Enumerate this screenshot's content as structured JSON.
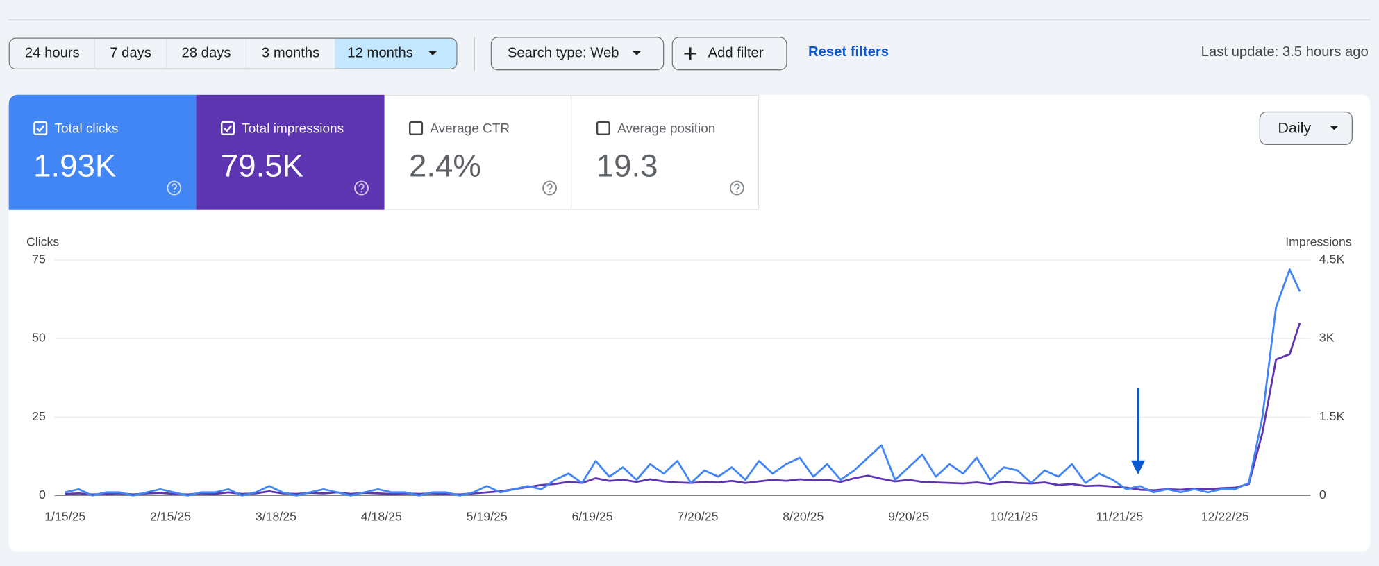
{
  "toolbar": {
    "ranges": [
      "24 hours",
      "7 days",
      "28 days",
      "3 months",
      "12 months"
    ],
    "search_type": "Search type: Web",
    "add_filter": "Add filter",
    "reset": "Reset filters",
    "last_update": "Last update: 3.5 hours ago"
  },
  "metrics": [
    {
      "label": "Total clicks",
      "value": "1.93K"
    },
    {
      "label": "Total impressions",
      "value": "79.5K"
    },
    {
      "label": "Average CTR",
      "value": "2.4%"
    },
    {
      "label": "Average position",
      "value": "19.3"
    }
  ],
  "granularity": "Daily",
  "chart_data": {
    "type": "line",
    "y_label": "Clicks",
    "y2_label": "Impressions",
    "x": [
      "1/15/25",
      "1/19/25",
      "1/23/25",
      "1/27/25",
      "1/31/25",
      "2/4/25",
      "2/8/25",
      "2/12/25",
      "2/16/25",
      "2/20/25",
      "2/24/25",
      "2/28/25",
      "3/4/25",
      "3/8/25",
      "3/12/25",
      "3/16/25",
      "3/20/25",
      "3/24/25",
      "3/28/25",
      "4/1/25",
      "4/5/25",
      "4/9/25",
      "4/13/25",
      "4/17/25",
      "4/21/25",
      "4/25/25",
      "4/29/25",
      "5/3/25",
      "5/7/25",
      "5/11/25",
      "5/15/25",
      "5/19/25",
      "5/23/25",
      "5/27/25",
      "5/31/25",
      "6/4/25",
      "6/8/25",
      "6/12/25",
      "6/16/25",
      "6/20/25",
      "6/24/25",
      "6/28/25",
      "7/2/25",
      "7/6/25",
      "7/10/25",
      "7/14/25",
      "7/18/25",
      "7/22/25",
      "7/26/25",
      "7/30/25",
      "8/3/25",
      "8/7/25",
      "8/11/25",
      "8/15/25",
      "8/19/25",
      "8/23/25",
      "8/27/25",
      "8/31/25",
      "9/4/25",
      "9/8/25",
      "9/12/25",
      "9/16/25",
      "9/20/25",
      "9/24/25",
      "9/28/25",
      "10/2/25",
      "10/6/25",
      "10/10/25",
      "10/14/25",
      "10/18/25",
      "10/22/25",
      "10/26/25",
      "10/30/25",
      "11/3/25",
      "11/7/25",
      "11/11/25",
      "11/15/25",
      "11/19/25",
      "11/23/25",
      "11/27/25",
      "12/1/25",
      "12/5/25",
      "12/9/25",
      "12/13/25",
      "12/17/25",
      "12/21/25",
      "12/25/25",
      "12/29/25",
      "1/2/26",
      "1/6/26",
      "1/10/26",
      "1/13/26"
    ],
    "xlim": [
      "1/15/25",
      "1/13/26"
    ],
    "xticks": [
      "1/15/25",
      "2/15/25",
      "3/18/25",
      "4/18/25",
      "5/19/25",
      "6/19/25",
      "7/20/25",
      "8/20/25",
      "9/20/25",
      "10/21/25",
      "11/21/25",
      "12/22/25"
    ],
    "ylim": [
      0,
      75
    ],
    "yticks": [
      0,
      25,
      50,
      75
    ],
    "y2lim": [
      0,
      4500
    ],
    "y2ticks": [
      0,
      {
        "value": 1500,
        "label": "1.5K"
      },
      {
        "value": 3000,
        "label": "3K"
      },
      {
        "value": 4500,
        "label": "4.5K"
      }
    ],
    "grid": true,
    "series": [
      {
        "name": "Clicks",
        "color": "#4285f4",
        "axis": "y",
        "values": [
          1,
          2,
          0,
          1,
          1,
          0,
          1,
          2,
          1,
          0,
          1,
          1,
          2,
          0,
          1,
          3,
          1,
          0,
          1,
          2,
          1,
          0,
          1,
          2,
          1,
          1,
          0,
          1,
          1,
          0,
          1,
          3,
          1,
          2,
          3,
          2,
          5,
          7,
          4,
          11,
          6,
          9,
          5,
          10,
          7,
          11,
          4,
          8,
          6,
          9,
          5,
          11,
          7,
          10,
          12,
          6,
          10,
          5,
          8,
          12,
          16,
          5,
          9,
          13,
          6,
          10,
          7,
          12,
          5,
          9,
          8,
          4,
          8,
          6,
          10,
          4,
          7,
          5,
          2,
          3,
          1,
          2,
          1,
          2,
          1,
          2,
          2,
          4,
          25,
          60,
          72,
          65
        ]
      },
      {
        "name": "Impressions",
        "color": "#5e35b1",
        "axis": "y2",
        "values": [
          30,
          40,
          20,
          30,
          40,
          20,
          40,
          50,
          30,
          20,
          40,
          30,
          60,
          30,
          40,
          80,
          40,
          30,
          50,
          40,
          60,
          30,
          50,
          40,
          30,
          40,
          30,
          40,
          30,
          20,
          40,
          60,
          80,
          120,
          160,
          200,
          220,
          260,
          240,
          330,
          280,
          300,
          260,
          310,
          270,
          250,
          240,
          260,
          250,
          280,
          240,
          270,
          300,
          280,
          310,
          290,
          300,
          260,
          330,
          380,
          320,
          270,
          300,
          260,
          250,
          240,
          230,
          250,
          220,
          260,
          240,
          230,
          250,
          200,
          220,
          180,
          190,
          170,
          150,
          110,
          100,
          120,
          110,
          130,
          120,
          140,
          150,
          220,
          1200,
          2600,
          2700,
          3300
        ]
      }
    ]
  }
}
